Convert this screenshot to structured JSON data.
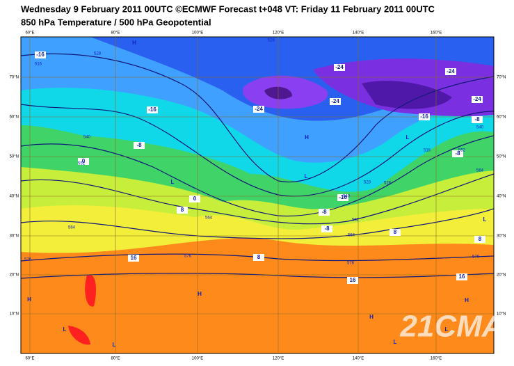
{
  "header": {
    "title": "Wednesday 9 February 2011 00UTC ©ECMWF Forecast t+048 VT: Friday 11 February 2011 00UTC",
    "subtitle": "850 hPa Temperature / 500 hPa Geopotential"
  },
  "axes": {
    "longitudes": [
      "60°E",
      "80°E",
      "100°E",
      "120°E",
      "140°E",
      "160°E"
    ],
    "latitudes": [
      "70°N",
      "60°N",
      "50°N",
      "40°N",
      "30°N",
      "20°N",
      "10°N"
    ]
  },
  "temperature_labels": [
    "-16",
    "-16",
    "-8",
    "-24",
    "-24",
    "-24",
    "-24",
    "-24",
    "-16",
    "-8",
    "-8",
    "0",
    "0",
    "8",
    "-16",
    "-8",
    "-8",
    "8",
    "8",
    "8",
    "16",
    "16",
    "16"
  ],
  "geopotential_labels": [
    "528",
    "516",
    "528",
    "540",
    "552",
    "564",
    "576",
    "564",
    "576",
    "528",
    "540",
    "552",
    "564",
    "576",
    "576",
    "552",
    "564",
    "540",
    "516",
    "528"
  ],
  "pressure_centers": [
    "H",
    "H",
    "H",
    "H",
    "H",
    "H",
    "L",
    "L",
    "L",
    "L",
    "L",
    "L",
    "L",
    "L"
  ],
  "watermark": "21CMA"
}
